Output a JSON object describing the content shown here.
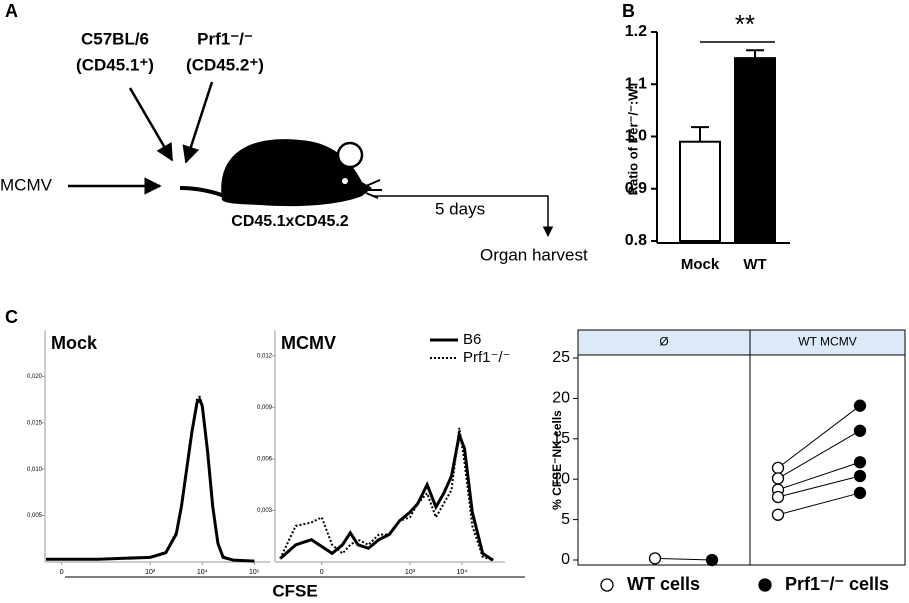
{
  "figure": {
    "labels": [
      "A",
      "B",
      "C"
    ]
  },
  "diagram": {
    "donor1": "C57BL/6",
    "donor1_marker": "(CD45.1⁺)",
    "donor2": "Prf1⁻/⁻",
    "donor2_marker": "(CD45.2⁺)",
    "infection": "MCMV",
    "recipient": "CD45.1xCD45.2",
    "duration": "5 days",
    "endpoint": "Organ harvest"
  },
  "chart_data": [
    {
      "type": "bar",
      "ylabel": "Ratio of Per⁻/⁻:WT",
      "categories": [
        "Mock",
        "WT"
      ],
      "values": [
        0.99,
        1.15
      ],
      "errors": [
        0.028,
        0.015
      ],
      "colors": [
        "#ffffff",
        "#000000"
      ],
      "ylim": [
        0.8,
        1.2
      ],
      "yticks": [
        0.8,
        0.9,
        {
          "value": 1,
          "label": "1.0"
        },
        1.1,
        1.2
      ],
      "significance": "**"
    },
    {
      "type": "line",
      "title": "Mock",
      "xlabel": "CFSE",
      "x": [
        1.0,
        2.0,
        3.0,
        3.3,
        3.5,
        3.6,
        3.7,
        3.8,
        3.9,
        3.95,
        4.0,
        4.1,
        4.2,
        4.3,
        4.4,
        4.6,
        5.0
      ],
      "series": [
        {
          "name": "B6",
          "style": "solid",
          "values": [
            0.0003,
            0.0003,
            0.0005,
            0.001,
            0.003,
            0.006,
            0.01,
            0.014,
            0.0172,
            0.0175,
            0.0168,
            0.012,
            0.006,
            0.002,
            0.0005,
            0.0002,
            0.0001
          ]
        },
        {
          "name": "Prf1⁻/⁻",
          "style": "dotted",
          "values": [
            0.0003,
            0.0003,
            0.0005,
            0.0011,
            0.0032,
            0.0062,
            0.0102,
            0.0142,
            0.0176,
            0.0178,
            0.017,
            0.0122,
            0.0062,
            0.0021,
            0.0006,
            0.0002,
            0.0001
          ]
        }
      ],
      "xlim": [
        0.98,
        5.3
      ],
      "xticks": [
        {
          "value": 1.3,
          "label": "0"
        },
        {
          "value": 3,
          "label": "10³"
        },
        {
          "value": 4,
          "label": "10⁴"
        },
        {
          "value": 5,
          "label": "10⁵"
        }
      ],
      "ylim": [
        0,
        0.025
      ],
      "yticks": [
        {
          "value": 0.005,
          "label": "0,005"
        },
        {
          "value": 0.01,
          "label": "0,010"
        },
        {
          "value": 0.015,
          "label": "0,015"
        },
        {
          "value": 0.02,
          "label": "0,020"
        }
      ]
    },
    {
      "type": "line",
      "title": "MCMV",
      "legend": true,
      "x": [
        0.5,
        0.8,
        1.1,
        1.3,
        1.5,
        1.7,
        1.85,
        2.0,
        2.2,
        2.4,
        2.6,
        2.8,
        3.0,
        3.15,
        3.33,
        3.5,
        3.65,
        3.8,
        3.95,
        4.05,
        4.2,
        4.4,
        4.6
      ],
      "series": [
        {
          "name": "B6",
          "style": "solid",
          "values": [
            0.0002,
            0.001,
            0.0013,
            0.0009,
            0.0005,
            0.001,
            0.0017,
            0.001,
            0.0008,
            0.0013,
            0.0016,
            0.0024,
            0.0029,
            0.0034,
            0.0045,
            0.0032,
            0.004,
            0.005,
            0.0074,
            0.0066,
            0.0029,
            0.0005,
            0.0001
          ]
        },
        {
          "name": "Prf1⁻/⁻",
          "style": "dotted",
          "values": [
            0.0002,
            0.0021,
            0.0023,
            0.0026,
            0.001,
            0.0005,
            0.001,
            0.0013,
            0.001,
            0.0016,
            0.0016,
            0.0024,
            0.0026,
            0.0034,
            0.004,
            0.0026,
            0.0034,
            0.0042,
            0.0078,
            0.0058,
            0.0021,
            0.0003,
            0.0001
          ]
        }
      ],
      "xlim": [
        0.4,
        4.83
      ],
      "xticks": [
        {
          "value": 1.3,
          "label": "0"
        },
        {
          "value": 3,
          "label": "10³"
        },
        {
          "value": 4,
          "label": "10⁴"
        }
      ],
      "ylim": [
        0,
        0.0135
      ],
      "yticks": [
        {
          "value": 0.003,
          "label": "0,003"
        },
        {
          "value": 0.006,
          "label": "0,006"
        },
        {
          "value": 0.009,
          "label": "0,009"
        },
        {
          "value": 0.012,
          "label": "0,012"
        }
      ]
    },
    {
      "type": "paired-dot",
      "ylabel": "% CFSE⁻NK cells",
      "categories": [
        "Ø",
        "WT MCMV"
      ],
      "series": [
        {
          "name": "WT cells",
          "marker": "open",
          "values": [
            [
              0.2
            ],
            [
              11.4,
              10.1,
              8.7,
              7.8,
              5.6
            ]
          ]
        },
        {
          "name": "Prf1⁻/⁻ cells",
          "marker": "filled",
          "values": [
            [
              0
            ],
            [
              19.1,
              16,
              12.1,
              10.4,
              8.3
            ]
          ]
        }
      ],
      "ylim": [
        0,
        25
      ],
      "yticks": [
        0,
        5,
        10,
        15,
        20,
        25
      ]
    }
  ]
}
